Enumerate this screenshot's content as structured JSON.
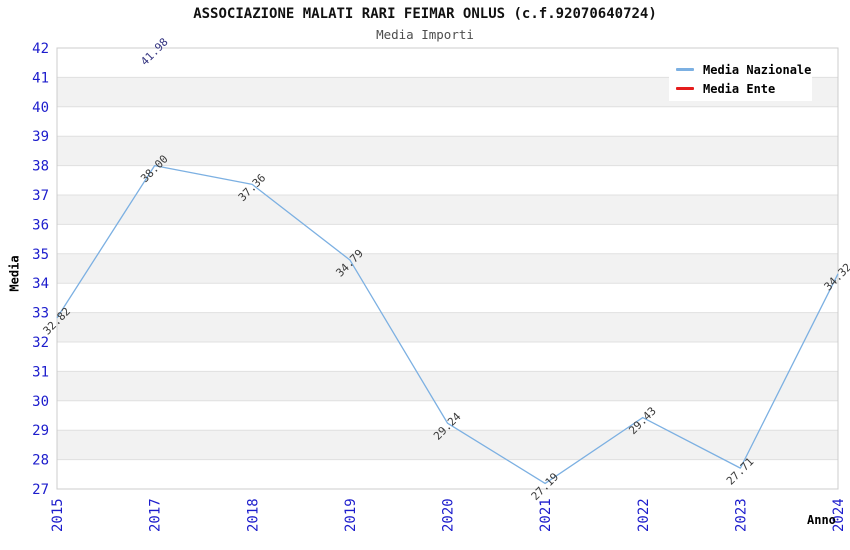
{
  "chart_data": {
    "type": "line",
    "title": "ASSOCIAZIONE MALATI RARI FEIMAR ONLUS (c.f.92070640724)",
    "subtitle": "Media Importi",
    "xlabel": "Anno",
    "ylabel": "Media",
    "categories": [
      "2015",
      "2017",
      "2018",
      "2019",
      "2020",
      "2021",
      "2022",
      "2023",
      "2024"
    ],
    "series": [
      {
        "name": "Media Nazionale",
        "color": "#7cb0e2",
        "label_color": "#3a3a3a",
        "values": [
          32.82,
          38.0,
          37.36,
          34.79,
          29.24,
          27.19,
          29.43,
          27.71,
          34.32
        ]
      },
      {
        "name": "Media Ente",
        "color": "#e51c1c",
        "label_color": "#343480",
        "values": [
          null,
          41.98,
          null,
          null,
          null,
          null,
          null,
          null,
          null
        ]
      }
    ],
    "ylim": [
      27,
      42
    ],
    "y_step": 1,
    "grid": "horizontal-bands",
    "legend_position": "top-right",
    "colors": {
      "tick_label": "#1c1ccc",
      "band_fill": "#f2f2f2",
      "grid_line": "#e0e0e0",
      "plot_border": "#cccccc"
    }
  }
}
